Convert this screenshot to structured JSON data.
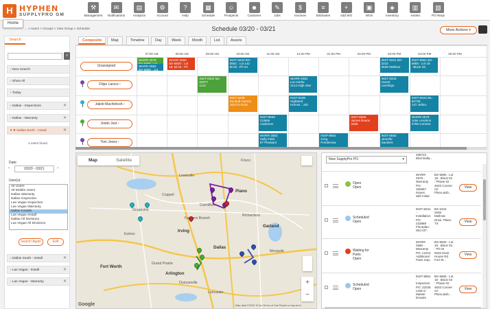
{
  "brand": {
    "mark": "H",
    "line1": "HYPHEN",
    "line2": "SUPPLYPRO GM",
    "accent": "#e8641b"
  },
  "nav": [
    {
      "label": "Management",
      "icon": "wrench-icon",
      "glyph": "⚒"
    },
    {
      "label": "Notifications",
      "icon": "bell-icon",
      "glyph": "✉"
    },
    {
      "label": "Analytics",
      "icon": "chart-icon",
      "glyph": "▤"
    },
    {
      "label": "Account",
      "icon": "account-icon",
      "glyph": "⚙"
    },
    {
      "label": "Help",
      "icon": "help-icon",
      "glyph": "?"
    },
    {
      "label": "Schedule",
      "icon": "calendar-icon",
      "glyph": "▦"
    },
    {
      "label": "Prospects",
      "icon": "prospects-icon",
      "glyph": "☺"
    },
    {
      "label": "Customer",
      "icon": "customer-icon",
      "glyph": "☻"
    },
    {
      "label": "Jobs",
      "icon": "jobs-icon",
      "glyph": "✎"
    },
    {
      "label": "Invoices",
      "icon": "invoices-icon",
      "glyph": "$"
    },
    {
      "label": "Estimates",
      "icon": "estimates-icon",
      "glyph": "≡"
    },
    {
      "label": "Add WO",
      "icon": "add-wo-icon",
      "glyph": "+"
    },
    {
      "label": "WOs",
      "icon": "wos-icon",
      "glyph": "▣"
    },
    {
      "label": "Inventory",
      "icon": "inventory-icon",
      "glyph": "◈"
    },
    {
      "label": "Assets",
      "icon": "assets-icon",
      "glyph": "▥"
    },
    {
      "label": "PO Reqs",
      "icon": "po-reqs-icon",
      "glyph": "▧"
    }
  ],
  "home_label": "Home",
  "breadcrumb": "... > Users > Groups > View Group > Schedule",
  "title": "Schedule  03/20 - 03/21",
  "more_actions": "More Actions",
  "sidebar": {
    "search_tab": "Search",
    "search_placeholder": "",
    "rows_top": [
      {
        "label": "New Search"
      },
      {
        "label": "Show All"
      },
      {
        "label": "Today"
      }
    ],
    "filters": [
      {
        "label": "Dallas - Inspections",
        "active": false
      },
      {
        "label": "Dallas - Warranty",
        "active": false
      },
      {
        "label": "★ Dallas North - Install",
        "active": true
      }
    ],
    "found": "4 users found",
    "date_label": "Date:",
    "date_value": "03/20 - 03/21",
    "users_label": "User(s):",
    "users": [
      "All Users",
      "All Mobile Users",
      "Dallas Warranty",
      "Dallas Inspection",
      "Las Vegas Inspection",
      "Las Vegas Warranty",
      "Dallas Installs",
      "Las Vegas Install",
      "Dallas All Divisions",
      "Las Vegas All Divisions"
    ],
    "selected_user": "Dallas Installs",
    "search_again": "Search Again",
    "edit": "Edit",
    "filters_bottom": [
      {
        "label": "Dallas South - Install"
      },
      {
        "label": "Las Vegas - Install"
      },
      {
        "label": "Las Vegas - Warranty"
      }
    ]
  },
  "tabs": [
    "Composite",
    "Map",
    "Timeline",
    "Day",
    "Week",
    "Month",
    "List",
    "Assets"
  ],
  "active_tab": "Composite",
  "times": [
    "07:00 AM",
    "08:00 AM",
    "09:00 AM",
    "10:00 AM",
    "11:00 AM",
    "12:00 PM",
    "01:00 PM",
    "02:00 PM",
    "03:00 PM",
    "04:00 PM",
    "05:00 PM"
  ],
  "resources": [
    {
      "name": "Unassigned",
      "pin": ""
    },
    {
      "name": "Filipe Larsco",
      "pin": "#7b3fb3"
    },
    {
      "name": "Jakob Machinlosh",
      "pin": "#23b3c4"
    },
    {
      "name": "Jostin Jost",
      "pin": "#4caf2c"
    },
    {
      "name": "Tom Jones",
      "pin": "#7b3fb3"
    }
  ],
  "jobs": [
    {
      "text": "WARR-2579\nBX-5865: Lot\n18: Block 03",
      "color": "green"
    },
    {
      "text": "WARR-2582\nBX-5865 : Lot\n18: Bl 03",
      "color": "teal"
    },
    {
      "text": "WARR-2580\nBX-5825 : Lot\n18: Bl 03 : Ph",
      "color": "red"
    },
    {
      "text": "INST-8340 BX-\n0862 : Lot 142\nBl 03 : Ph 04",
      "color": "teal"
    },
    {
      "text": "INST-8341 BX-\n2222\n2636 Mollmar",
      "color": "teal"
    },
    {
      "text": "INST-8561 BX-\n5865 : Lot 18\n: Block 03",
      "color": "teal"
    },
    {
      "text": "INST-8342 ML-\n83377\n1112",
      "color": "green"
    },
    {
      "text": "WARR-2581\nLon Kiefer\n4114 High Star",
      "color": "teal"
    },
    {
      "text": "INST-8343\nGarrel\nLandingo",
      "color": "teal"
    },
    {
      "text": "INST-8338\nSunbolt Homes\nJob EX-0116",
      "color": "orange"
    },
    {
      "text": "INST-8339\nHighland\nHomes : Job",
      "color": "teal"
    },
    {
      "text": "INST-8344 ML-\n92728\n137 Jellico",
      "color": "teal"
    },
    {
      "text": "INST-8559\nColette\nAnderson",
      "color": "teal"
    },
    {
      "text": "INST-8566\nJames Evans\n3335",
      "color": "red"
    },
    {
      "text": "WARR-2578\nJulie Lendens\n3786 Cement",
      "color": "teal"
    },
    {
      "text": "WARR-2583\nSully Field\n67 Pleasant",
      "color": "teal"
    },
    {
      "text": "INSP-8562\nGreg\nPonderosa",
      "color": "teal"
    },
    {
      "text": "INST-8563\nJennifer\nSanders",
      "color": "teal"
    }
  ],
  "map": {
    "tab_map": "Map",
    "tab_satellite": "Satellite",
    "labels": [
      "Lewisville",
      "Carrollton",
      "Plano",
      "Richardson",
      "Garland",
      "Grapevine",
      "Irving",
      "Dallas",
      "Mesquite",
      "Fort Worth",
      "Arlington",
      "Grand Prairie",
      "Duncanville",
      "Lancaster",
      "Frisco",
      "Coppell",
      "Farmers Branch",
      "Euless"
    ],
    "google": "Google",
    "footer": "Map data ©2020   10 km          Terms of Use    Report a map error"
  },
  "list": {
    "dropdown": "New SupplyPro PO",
    "rows": [
      {
        "status": "Open\nOpen",
        "dot": "#8bc34a",
        "jtype": "WARR-\n2579 -\nWarranty\nPO:\n192867\nIssues\nwith initial",
        "addr": "BX-5865 : Lot\n18 : Block 03\n: Phase 02\n4633 Conner\nCir\nPlano,&nb...",
        "view": "View"
      },
      {
        "status": "Scheduled\nOpen",
        "dot": "#9bc7ee",
        "jtype": "INST-8341\n-\nInstallation\nPO:\n233989\nFloorplan:\nStd A37 :",
        "addr": "BX-2222\n2636\nMollmar\nDrive. Plano\nTX",
        "view": "View"
      },
      {
        "status": "Waiting for\nParts\nOpen",
        "dot": "#e2401d",
        "jtype": "WARR-\n2580 -\nWarranty\nPO: A23c3\nAdditional\nParts requ",
        "addr": "BX-5825 : Lot\n18 : Block 03\n: Ph 04\n5040 Deck\nHouse Rd\nFort W...",
        "view": "View"
      },
      {
        "status": "Scheduled\nOpen",
        "dot": "#9bc7ee",
        "jtype": "INST-8561\n-\nInspection\nPO: 23235\nLeak in\nMaster\nEnsuite",
        "addr": "BX-5865 : Lot\n18 : Block 03\n: Phase 02\n4633 Conner\nCir\nPlano,&nb...",
        "view": "View"
      }
    ],
    "top_partial": "338723\n  Blvd  Dalla..."
  }
}
